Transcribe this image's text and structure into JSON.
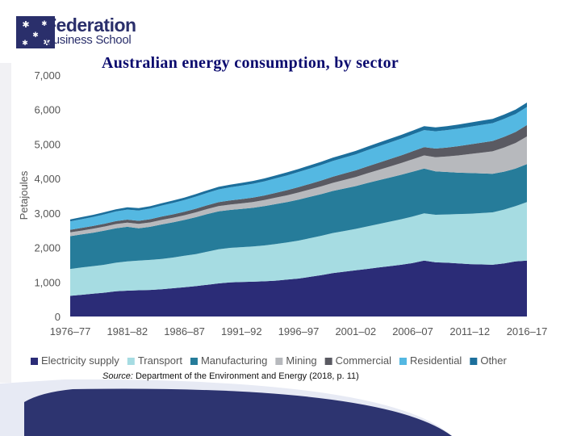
{
  "logo": {
    "name": "Federation",
    "sub": "Business School"
  },
  "source": {
    "label": "Source:",
    "text": "Department of the Environment and Energy (2018, p. 11)"
  },
  "colors": {
    "electricity": "#2b2c77",
    "transport": "#a6dce2",
    "manufacturing": "#267c9a",
    "mining": "#b7b9bd",
    "commercial": "#5a5a62",
    "residential": "#54b8e2",
    "other": "#1c6f9c",
    "navy": "#2a2f6b"
  },
  "chart_data": {
    "type": "area",
    "title": "Australian energy consumption, by sector",
    "ylabel": "Petajoules",
    "xlabel": "",
    "ylim": [
      0,
      7000
    ],
    "yticks": [
      0,
      1000,
      2000,
      3000,
      4000,
      5000,
      6000,
      7000
    ],
    "ytick_labels": [
      "0",
      "1,000",
      "2,000",
      "3,000",
      "4,000",
      "5,000",
      "6,000",
      "7,000"
    ],
    "xtick_labels": [
      "1976–77",
      "1981–82",
      "1986–87",
      "1991–92",
      "1996–97",
      "2001–02",
      "2006–07",
      "2011–12",
      "2016–17"
    ],
    "x": [
      "1976–77",
      "1977–78",
      "1978–79",
      "1979–80",
      "1980–81",
      "1981–82",
      "1982–83",
      "1983–84",
      "1984–85",
      "1985–86",
      "1986–87",
      "1987–88",
      "1988–89",
      "1989–90",
      "1990–91",
      "1991–92",
      "1992–93",
      "1993–94",
      "1994–95",
      "1995–96",
      "1996–97",
      "1997–98",
      "1998–99",
      "1999–2000",
      "2000–01",
      "2001–02",
      "2002–03",
      "2003–04",
      "2004–05",
      "2005–06",
      "2006–07",
      "2007–08",
      "2008–09",
      "2009–10",
      "2010–11",
      "2011–12",
      "2012–13",
      "2013–14",
      "2014–15",
      "2015–16",
      "2016–17"
    ],
    "legend_position": "bottom",
    "grid": false,
    "stacked": true,
    "series": [
      {
        "name": "Electricity supply",
        "color": "#2b2c77",
        "values": [
          600,
          630,
          660,
          690,
          730,
          750,
          760,
          770,
          790,
          820,
          850,
          880,
          920,
          960,
          990,
          1000,
          1010,
          1020,
          1040,
          1070,
          1100,
          1150,
          1200,
          1260,
          1300,
          1340,
          1380,
          1420,
          1460,
          1500,
          1550,
          1620,
          1570,
          1560,
          1540,
          1520,
          1510,
          1500,
          1540,
          1600,
          1620
        ]
      },
      {
        "name": "Transport",
        "color": "#a6dce2",
        "values": [
          780,
          790,
          800,
          810,
          830,
          850,
          860,
          870,
          880,
          890,
          910,
          930,
          960,
          990,
          1000,
          1010,
          1020,
          1040,
          1060,
          1080,
          1100,
          1120,
          1140,
          1160,
          1180,
          1200,
          1230,
          1260,
          1290,
          1320,
          1350,
          1370,
          1380,
          1400,
          1430,
          1460,
          1490,
          1520,
          1560,
          1600,
          1700
        ]
      },
      {
        "name": "Manufacturing",
        "color": "#267c9a",
        "values": [
          950,
          960,
          970,
          990,
          1000,
          1000,
          940,
          960,
          1000,
          1020,
          1040,
          1070,
          1090,
          1100,
          1100,
          1110,
          1120,
          1140,
          1160,
          1170,
          1190,
          1200,
          1210,
          1220,
          1230,
          1240,
          1260,
          1270,
          1280,
          1290,
          1300,
          1300,
          1260,
          1230,
          1200,
          1180,
          1150,
          1120,
          1100,
          1090,
          1100
        ]
      },
      {
        "name": "Mining",
        "color": "#b7b9bd",
        "values": [
          110,
          112,
          115,
          118,
          120,
          122,
          125,
          128,
          130,
          133,
          136,
          140,
          145,
          150,
          155,
          160,
          168,
          175,
          185,
          195,
          205,
          215,
          225,
          235,
          250,
          265,
          280,
          300,
          320,
          340,
          360,
          380,
          410,
          450,
          500,
          550,
          600,
          650,
          700,
          740,
          800
        ]
      },
      {
        "name": "Commercial",
        "color": "#5a5a62",
        "values": [
          75,
          78,
          80,
          83,
          86,
          88,
          90,
          93,
          96,
          99,
          102,
          106,
          110,
          115,
          120,
          125,
          130,
          135,
          140,
          148,
          155,
          162,
          170,
          178,
          185,
          192,
          200,
          208,
          216,
          224,
          232,
          240,
          250,
          260,
          270,
          280,
          290,
          300,
          310,
          320,
          330
        ]
      },
      {
        "name": "Residential",
        "color": "#54b8e2",
        "values": [
          240,
          250,
          260,
          270,
          280,
          290,
          300,
          310,
          320,
          330,
          340,
          350,
          360,
          370,
          380,
          390,
          400,
          410,
          420,
          430,
          440,
          445,
          450,
          455,
          460,
          465,
          470,
          475,
          480,
          485,
          490,
          495,
          500,
          505,
          510,
          512,
          515,
          518,
          520,
          522,
          525
        ]
      },
      {
        "name": "Other",
        "color": "#1c6f9c",
        "values": [
          60,
          61,
          62,
          63,
          64,
          65,
          66,
          67,
          68,
          69,
          70,
          72,
          74,
          76,
          78,
          80,
          82,
          84,
          86,
          88,
          90,
          92,
          94,
          96,
          98,
          100,
          102,
          104,
          106,
          108,
          110,
          112,
          114,
          116,
          118,
          120,
          122,
          124,
          126,
          128,
          130
        ]
      }
    ]
  }
}
